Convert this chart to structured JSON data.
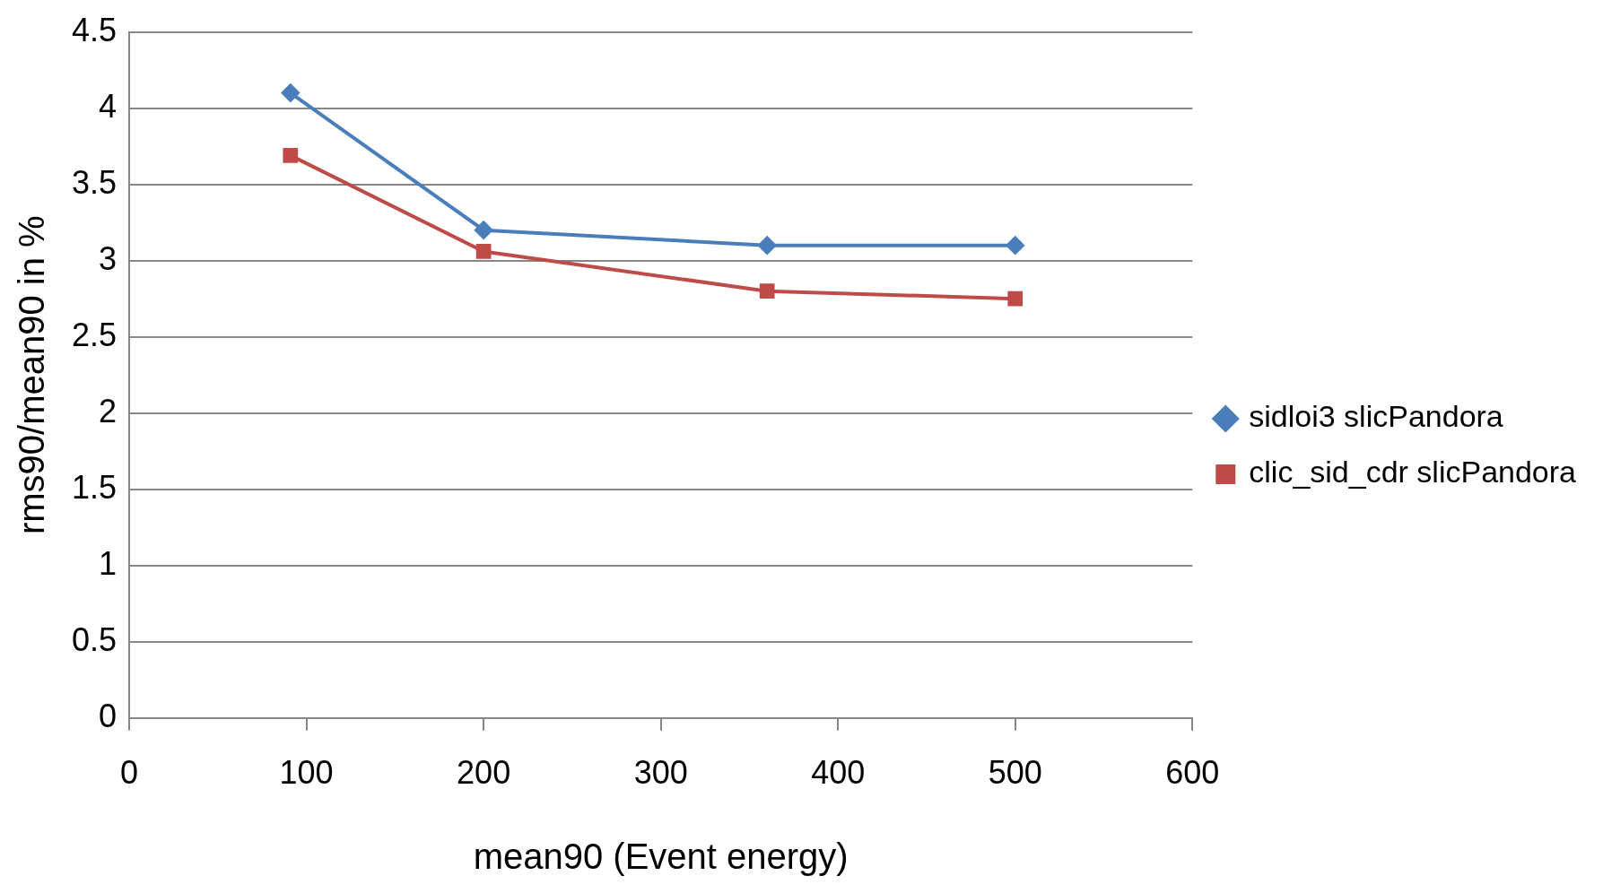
{
  "chart_data": {
    "type": "line",
    "xlabel": "mean90 (Event energy)",
    "ylabel": "rms90/mean90 in %",
    "xlim": [
      0,
      600
    ],
    "xticks": [
      0,
      100,
      200,
      300,
      400,
      500,
      600
    ],
    "ylim": [
      0,
      4.5
    ],
    "yticks": [
      0,
      0.5,
      1,
      1.5,
      2,
      2.5,
      3,
      3.5,
      4,
      4.5
    ],
    "grid": "y",
    "legend": "right",
    "line_style": "solid",
    "series": [
      {
        "name": "sidloi3 slicPandora",
        "color": "#4a7ebb",
        "marker": "diamond",
        "x": [
          91,
          200,
          360,
          500
        ],
        "values": [
          4.1,
          3.2,
          3.1,
          3.1
        ]
      },
      {
        "name": "clic_sid_cdr slicPandora",
        "color": "#be4b48",
        "marker": "square",
        "x": [
          91,
          200,
          360,
          500
        ],
        "values": [
          3.69,
          3.06,
          2.8,
          2.75
        ]
      }
    ]
  }
}
